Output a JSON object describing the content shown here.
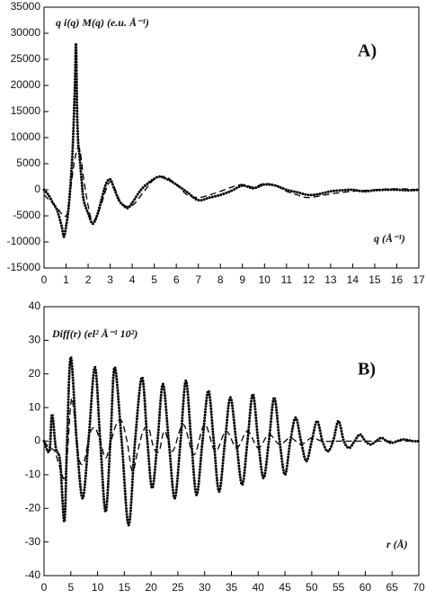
{
  "chart_data": [
    {
      "type": "line",
      "ylabel": "q i(q) M(q) (e.u. Å⁻¹)",
      "annotation": "A)",
      "xlabel": "q (Å⁻¹)",
      "xlim": [
        0,
        17
      ],
      "xticks": [
        0,
        1,
        2,
        3,
        4,
        5,
        6,
        7,
        8,
        9,
        10,
        11,
        12,
        13,
        14,
        15,
        16,
        17
      ],
      "ylim": [
        -15000,
        35000
      ],
      "yticks": [
        -15000,
        -10000,
        -5000,
        0,
        5000,
        10000,
        15000,
        20000,
        25000,
        30000,
        35000
      ],
      "series": [
        {
          "style": "dotted",
          "color": "#000000",
          "x": [
            0,
            0.2,
            0.4,
            0.6,
            0.8,
            0.9,
            1.0,
            1.1,
            1.2,
            1.3,
            1.4,
            1.45,
            1.5,
            1.55,
            1.6,
            1.7,
            1.8,
            2.0,
            2.2,
            2.4,
            2.6,
            2.8,
            3.0,
            3.2,
            3.4,
            3.6,
            3.8,
            4.0,
            4.4,
            4.8,
            5.2,
            5.6,
            6.0,
            6.5,
            7.0,
            7.5,
            8.0,
            8.5,
            9.0,
            9.5,
            10.0,
            10.5,
            11.0,
            11.5,
            12.0,
            12.5,
            13.0,
            13.5,
            14.0,
            14.5,
            15.0,
            15.5,
            16.0,
            16.5,
            17.0
          ],
          "values": [
            0,
            -1000,
            -2500,
            -4000,
            -7000,
            -9000,
            -7000,
            -4000,
            1000,
            8000,
            20000,
            28000,
            15000,
            9000,
            7000,
            2000,
            -2000,
            -4500,
            -6500,
            -5000,
            -2000,
            1000,
            2000,
            0,
            -2000,
            -3000,
            -3500,
            -2500,
            0,
            1500,
            2500,
            2000,
            1000,
            -500,
            -2000,
            -1500,
            -1000,
            -200,
            800,
            300,
            1000,
            800,
            0,
            -500,
            -1000,
            -800,
            -300,
            -100,
            0,
            -300,
            -100,
            0,
            0,
            -100,
            0
          ]
        },
        {
          "style": "dashed",
          "color": "#000000",
          "x": [
            0,
            0.5,
            1.0,
            1.2,
            1.4,
            1.6,
            1.8,
            2.0,
            2.2,
            2.5,
            3.0,
            3.5,
            4.0,
            4.5,
            5.0,
            5.5,
            6.0,
            6.5,
            7.0,
            7.5,
            8.0,
            8.5,
            9.0,
            9.5,
            10.0,
            10.5,
            11.0,
            11.5,
            12.0,
            13.0,
            14.0,
            15.0,
            16.0,
            17.0
          ],
          "values": [
            -1000,
            -3000,
            -5000,
            0,
            6000,
            8000,
            2000,
            -3000,
            -6000,
            -4000,
            1500,
            -2500,
            -3000,
            -500,
            2000,
            2500,
            1000,
            -1000,
            -1500,
            -1000,
            -300,
            500,
            1000,
            500,
            1200,
            800,
            -300,
            -1000,
            -1500,
            -800,
            -300,
            0,
            200,
            0
          ]
        }
      ]
    },
    {
      "type": "line",
      "ylabel": "Diff(r) (el² Å⁻¹ 10²)",
      "annotation": "B)",
      "xlabel": "r (Å)",
      "xlim": [
        0,
        70
      ],
      "xticks": [
        0,
        5,
        10,
        15,
        20,
        25,
        30,
        35,
        40,
        45,
        50,
        55,
        60,
        65,
        70
      ],
      "ylim": [
        -40,
        40
      ],
      "yticks": [
        -40,
        -30,
        -20,
        -10,
        0,
        10,
        20,
        30,
        40
      ],
      "series": [
        {
          "style": "dotted",
          "color": "#000000",
          "x": [
            0,
            1,
            1.5,
            2.2,
            3,
            3.8,
            4.3,
            5,
            6.1,
            7.2,
            8.3,
            9.5,
            10.5,
            11.5,
            12.4,
            13.2,
            14.5,
            15.8,
            17,
            18.3,
            19.3,
            20.2,
            21.2,
            22.2,
            23.3,
            24.4,
            25.5,
            26.5,
            27.5,
            28.5,
            29.6,
            30.7,
            31.7,
            32.7,
            33.8,
            34.8,
            35.9,
            37,
            38,
            39,
            40,
            41,
            42,
            43,
            44,
            45,
            46,
            47,
            48,
            49,
            50,
            51,
            52,
            53,
            54,
            55,
            56,
            57,
            58,
            59,
            60,
            61,
            62,
            63,
            64,
            65,
            67,
            69,
            70
          ],
          "values": [
            0,
            -3,
            8,
            -2,
            -6,
            -24,
            0,
            25,
            0,
            -17,
            0,
            22,
            0,
            -21,
            0,
            22,
            0,
            -25,
            0,
            19,
            0,
            -14,
            0,
            17,
            0,
            -17,
            0,
            18,
            0,
            -16,
            0,
            15,
            0,
            -15,
            0,
            13,
            0,
            -13,
            0,
            14,
            0,
            -11,
            0,
            13,
            0,
            -10,
            0,
            7,
            0,
            -6,
            0,
            6,
            0,
            -3,
            0,
            6,
            0,
            -2,
            0,
            2,
            0,
            -1,
            0,
            1,
            0,
            -0.5,
            0.5,
            0,
            0
          ]
        },
        {
          "style": "dashed",
          "color": "#000000",
          "x": [
            0,
            1,
            2,
            3,
            4,
            5,
            5.5,
            6.5,
            7.5,
            8.5,
            9.5,
            10.5,
            11.5,
            12.5,
            13.5,
            14.5,
            15.5,
            16.5,
            17.5,
            18.5,
            19.5,
            20.5,
            21.5,
            22.5,
            24,
            26,
            28,
            30,
            32,
            34,
            36,
            38,
            40,
            42,
            44,
            46,
            48,
            50,
            52,
            55,
            58,
            62,
            66,
            70
          ],
          "values": [
            0,
            -2,
            -3,
            -8,
            -10,
            11,
            10,
            -5,
            -6,
            2,
            4,
            0,
            -5,
            0,
            5,
            6,
            0,
            -9,
            -3,
            3,
            4,
            -2,
            -3,
            3,
            -3,
            5,
            -4,
            5,
            -3,
            3,
            -2,
            3,
            -2,
            2,
            -1,
            1,
            -1,
            1,
            0,
            0,
            0,
            0,
            0,
            0
          ]
        }
      ]
    }
  ]
}
